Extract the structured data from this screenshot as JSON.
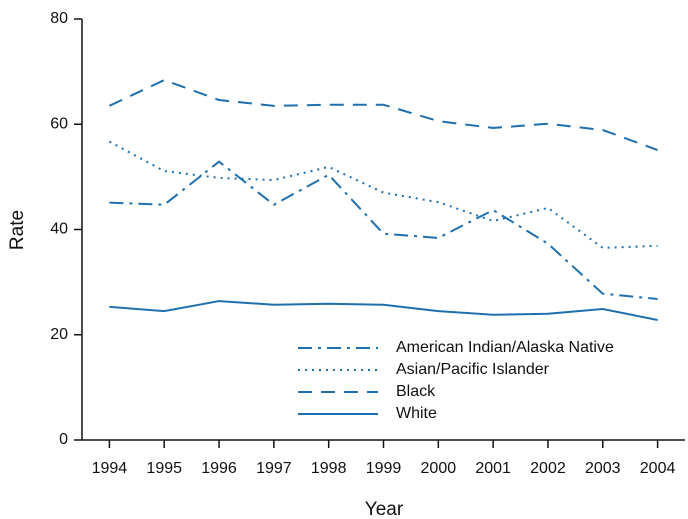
{
  "chart_data": {
    "type": "line",
    "x_label": "Year",
    "y_label": "Rate",
    "x": [
      1994,
      1995,
      1996,
      1997,
      1998,
      1999,
      2000,
      2001,
      2002,
      2003,
      2004
    ],
    "xlim": [
      1993.5,
      2004.5
    ],
    "xticks": [
      1994,
      1995,
      1996,
      1997,
      1998,
      1999,
      2000,
      2001,
      2002,
      2003,
      2004
    ],
    "ylim": [
      0,
      80
    ],
    "yticks": [
      0,
      20,
      40,
      60,
      80
    ],
    "legend": "lower right",
    "series": [
      {
        "name": "American Indian/Alaska Native",
        "color": "#1f6fae",
        "dash": "dashdot",
        "values": [
          45.1,
          44.7,
          52.9,
          44.7,
          50.4,
          39.2,
          38.4,
          43.7,
          37.3,
          27.8,
          26.8
        ]
      },
      {
        "name": "Asian/Pacific Islander",
        "color": "#1f6fae",
        "dash": "dotted",
        "values": [
          56.7,
          51.1,
          49.8,
          49.4,
          51.9,
          47.0,
          45.2,
          41.6,
          44.1,
          36.5,
          36.9
        ]
      },
      {
        "name": "Black",
        "color": "#1f6fae",
        "dash": "dashed",
        "values": [
          63.5,
          68.4,
          64.6,
          63.5,
          63.7,
          63.7,
          60.6,
          59.3,
          60.1,
          58.9,
          55.1
        ]
      },
      {
        "name": "White",
        "color": "#1f6fae",
        "dash": "solid",
        "values": [
          25.3,
          24.5,
          26.4,
          25.7,
          25.9,
          25.7,
          24.5,
          23.8,
          24.0,
          24.9,
          22.8
        ]
      }
    ]
  }
}
